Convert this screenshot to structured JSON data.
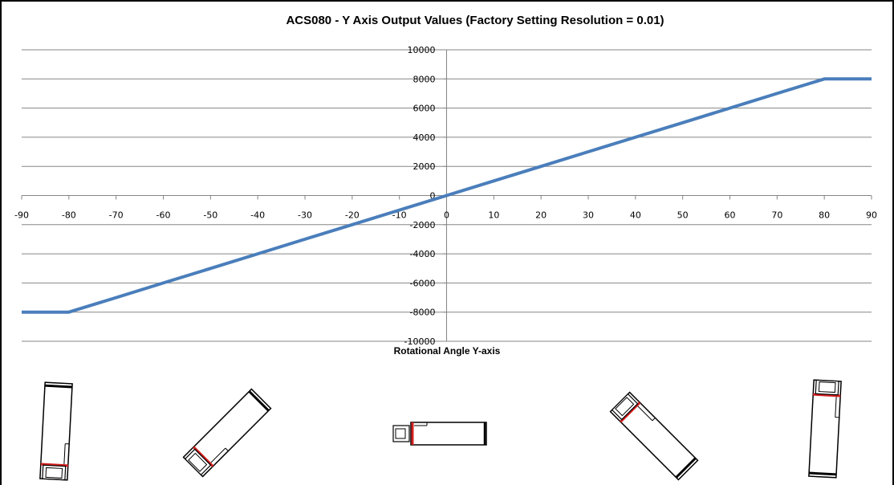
{
  "chart_data": {
    "type": "line",
    "title": "ACS080 - Y Axis Output Values (Factory Setting Resolution = 0.01)",
    "xlabel": "Rotational Angle Y-axis",
    "ylabel": "",
    "xlim": [
      -90,
      90
    ],
    "ylim": [
      -10000,
      10000
    ],
    "x_ticks": [
      -90,
      -80,
      -70,
      -60,
      -50,
      -40,
      -30,
      -20,
      -10,
      0,
      10,
      20,
      30,
      40,
      50,
      60,
      70,
      80,
      90
    ],
    "y_ticks": [
      -10000,
      -8000,
      -6000,
      -4000,
      -2000,
      0,
      2000,
      4000,
      6000,
      8000,
      10000
    ],
    "grid": "horizontal",
    "legend": "none",
    "series": [
      {
        "color": "#4a7ebb",
        "x": [
          -90,
          -80,
          -70,
          -60,
          -50,
          -40,
          -30,
          -20,
          -10,
          0,
          10,
          20,
          30,
          40,
          50,
          60,
          70,
          80,
          90
        ],
        "y": [
          -8000,
          -8000,
          -7000,
          -6000,
          -5000,
          -4000,
          -3000,
          -2000,
          -1000,
          0,
          1000,
          2000,
          3000,
          4000,
          5000,
          6000,
          7000,
          8000,
          8000
        ]
      }
    ]
  },
  "sensor_icons": [
    {
      "name": "sensor-icon-tilt-left-90"
    },
    {
      "name": "sensor-icon-tilt-left-45"
    },
    {
      "name": "sensor-icon-level-0"
    },
    {
      "name": "sensor-icon-tilt-right-45"
    },
    {
      "name": "sensor-icon-tilt-right-90"
    }
  ],
  "colors": {
    "line": "#4a7ebb",
    "marker": "#d42020",
    "grid": "#868686"
  }
}
